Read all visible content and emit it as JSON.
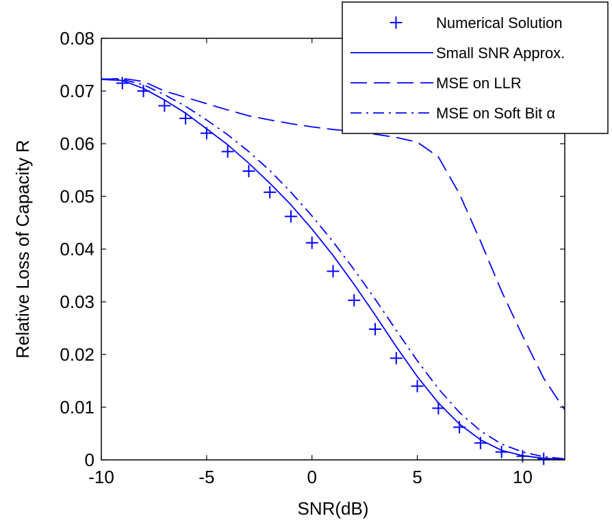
{
  "chart_data": {
    "type": "line",
    "xlabel": "SNR(dB)",
    "ylabel": "Relative Loss of Capacity R",
    "xlim": [
      -10,
      12
    ],
    "ylim": [
      0,
      0.08
    ],
    "x_ticks": [
      -10,
      -5,
      0,
      5,
      10
    ],
    "x_tick_labels": [
      "-10",
      "-5",
      "0",
      "5",
      "10"
    ],
    "y_ticks": [
      0,
      0.01,
      0.02,
      0.03,
      0.04,
      0.05,
      0.06,
      0.07,
      0.08
    ],
    "y_tick_labels": [
      "0",
      "0.01",
      "0.02",
      "0.03",
      "0.04",
      "0.05",
      "0.06",
      "0.07",
      "0.08"
    ],
    "grid": false,
    "legend_position": "top-right",
    "color": "#0000ff",
    "series": [
      {
        "name": "Numerical Solution",
        "style": "markers-plus",
        "x": [
          -9,
          -8,
          -7,
          -6,
          -5,
          -4,
          -3,
          -2,
          -1,
          0,
          1,
          2,
          3,
          4,
          5,
          6,
          7,
          8,
          9,
          10,
          11
        ],
        "y": [
          0.0715,
          0.07,
          0.0672,
          0.0648,
          0.062,
          0.0585,
          0.0548,
          0.0508,
          0.0462,
          0.0412,
          0.0358,
          0.0303,
          0.0248,
          0.0193,
          0.014,
          0.0098,
          0.0062,
          0.0032,
          0.0015,
          0.0007,
          0.0002
        ]
      },
      {
        "name": "Small SNR Approx.",
        "style": "solid",
        "x": [
          -10,
          -9,
          -8,
          -7,
          -6,
          -5,
          -4,
          -3,
          -2,
          -1,
          0,
          1,
          2,
          3,
          4,
          5,
          6,
          7,
          8,
          9,
          10,
          11,
          12
        ],
        "y": [
          0.0722,
          0.072,
          0.0705,
          0.0683,
          0.0658,
          0.0628,
          0.0598,
          0.0563,
          0.0525,
          0.0484,
          0.0438,
          0.0388,
          0.0333,
          0.0275,
          0.0215,
          0.0158,
          0.0108,
          0.0068,
          0.0038,
          0.0018,
          0.0008,
          0.0003,
          0.0001
        ]
      },
      {
        "name": "MSE on LLR",
        "style": "dashed",
        "x": [
          -10,
          -9,
          -8,
          -7,
          -6,
          -5,
          -4,
          -3,
          -2,
          -1,
          0,
          1,
          2,
          3,
          4,
          5,
          6,
          7,
          8,
          9,
          10,
          11,
          12
        ],
        "y": [
          0.0722,
          0.0724,
          0.0718,
          0.07,
          0.0688,
          0.0676,
          0.0664,
          0.0653,
          0.0645,
          0.0638,
          0.0632,
          0.0627,
          0.0623,
          0.0618,
          0.0612,
          0.0603,
          0.0575,
          0.0505,
          0.0415,
          0.032,
          0.0235,
          0.0155,
          0.0095
        ]
      },
      {
        "name": "MSE on Soft Bit α",
        "style": "dashdot",
        "x": [
          -10,
          -9,
          -8,
          -7,
          -6,
          -5,
          -4,
          -3,
          -2,
          -1,
          0,
          1,
          2,
          3,
          4,
          5,
          6,
          7,
          8,
          9,
          10,
          11,
          12
        ],
        "y": [
          0.0723,
          0.0722,
          0.0712,
          0.0693,
          0.0671,
          0.0645,
          0.0617,
          0.0585,
          0.0549,
          0.0508,
          0.0463,
          0.0414,
          0.0361,
          0.0305,
          0.0246,
          0.0188,
          0.0135,
          0.009,
          0.0055,
          0.003,
          0.0015,
          0.0006,
          0.0002
        ]
      }
    ]
  }
}
